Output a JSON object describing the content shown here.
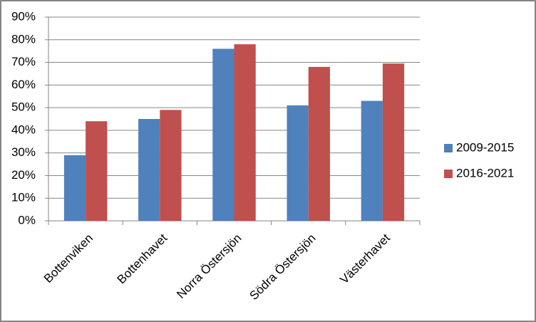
{
  "chart_data": {
    "type": "bar",
    "categories": [
      "Bottenviken",
      "Bottenhavet",
      "Norra Östersjön",
      "Södra Östersjön",
      "Västerhavet"
    ],
    "series": [
      {
        "name": "2009-2015",
        "color": "#4f81bd",
        "values": [
          29,
          45,
          76,
          51,
          53
        ]
      },
      {
        "name": "2016-2021",
        "color": "#c0504d",
        "values": [
          44,
          49,
          78,
          68,
          69.5
        ]
      }
    ],
    "ylim": [
      0,
      90
    ],
    "yticks": [
      {
        "value": 0,
        "label": "0%"
      },
      {
        "value": 10,
        "label": "10%"
      },
      {
        "value": 20,
        "label": "20%"
      },
      {
        "value": 30,
        "label": "30%"
      },
      {
        "value": 40,
        "label": "40%"
      },
      {
        "value": 50,
        "label": "50%"
      },
      {
        "value": 60,
        "label": "60%"
      },
      {
        "value": 70,
        "label": "70%"
      },
      {
        "value": 80,
        "label": "80%"
      },
      {
        "value": 90,
        "label": "90%"
      }
    ],
    "grid": true,
    "legend": "right"
  }
}
